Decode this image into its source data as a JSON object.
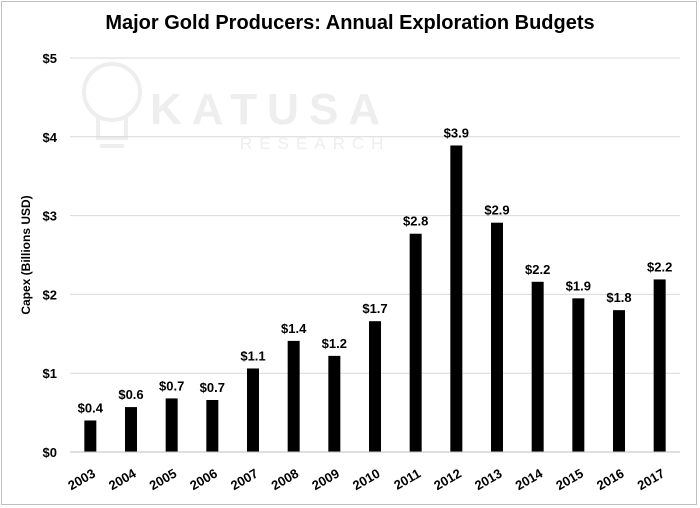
{
  "watermark": {
    "main": "KATUSA",
    "sub": "RESEARCH"
  },
  "chart_data": {
    "type": "bar",
    "title": "Major Gold Producers: Annual Exploration Budgets",
    "xlabel": "",
    "ylabel": "Capex (Billions USD)",
    "ylim": [
      0,
      5
    ],
    "yticks": [
      0,
      1,
      2,
      3,
      4,
      5
    ],
    "ytick_labels": [
      "$0",
      "$1",
      "$2",
      "$3",
      "$4",
      "$5"
    ],
    "grid": true,
    "bar_color": "#000000",
    "categories": [
      "2003",
      "2004",
      "2005",
      "2006",
      "2007",
      "2008",
      "2009",
      "2010",
      "2011",
      "2012",
      "2013",
      "2014",
      "2015",
      "2016",
      "2017"
    ],
    "values": [
      0.4,
      0.57,
      0.68,
      0.66,
      1.06,
      1.41,
      1.22,
      1.66,
      2.77,
      3.89,
      2.91,
      2.16,
      1.95,
      1.8,
      2.19
    ],
    "data_labels": [
      "$0.4",
      "$0.6",
      "$0.7",
      "$0.7",
      "$1.1",
      "$1.4",
      "$1.2",
      "$1.7",
      "$2.8",
      "$3.9",
      "$2.9",
      "$2.2",
      "$1.9",
      "$1.8",
      "$2.2"
    ]
  }
}
